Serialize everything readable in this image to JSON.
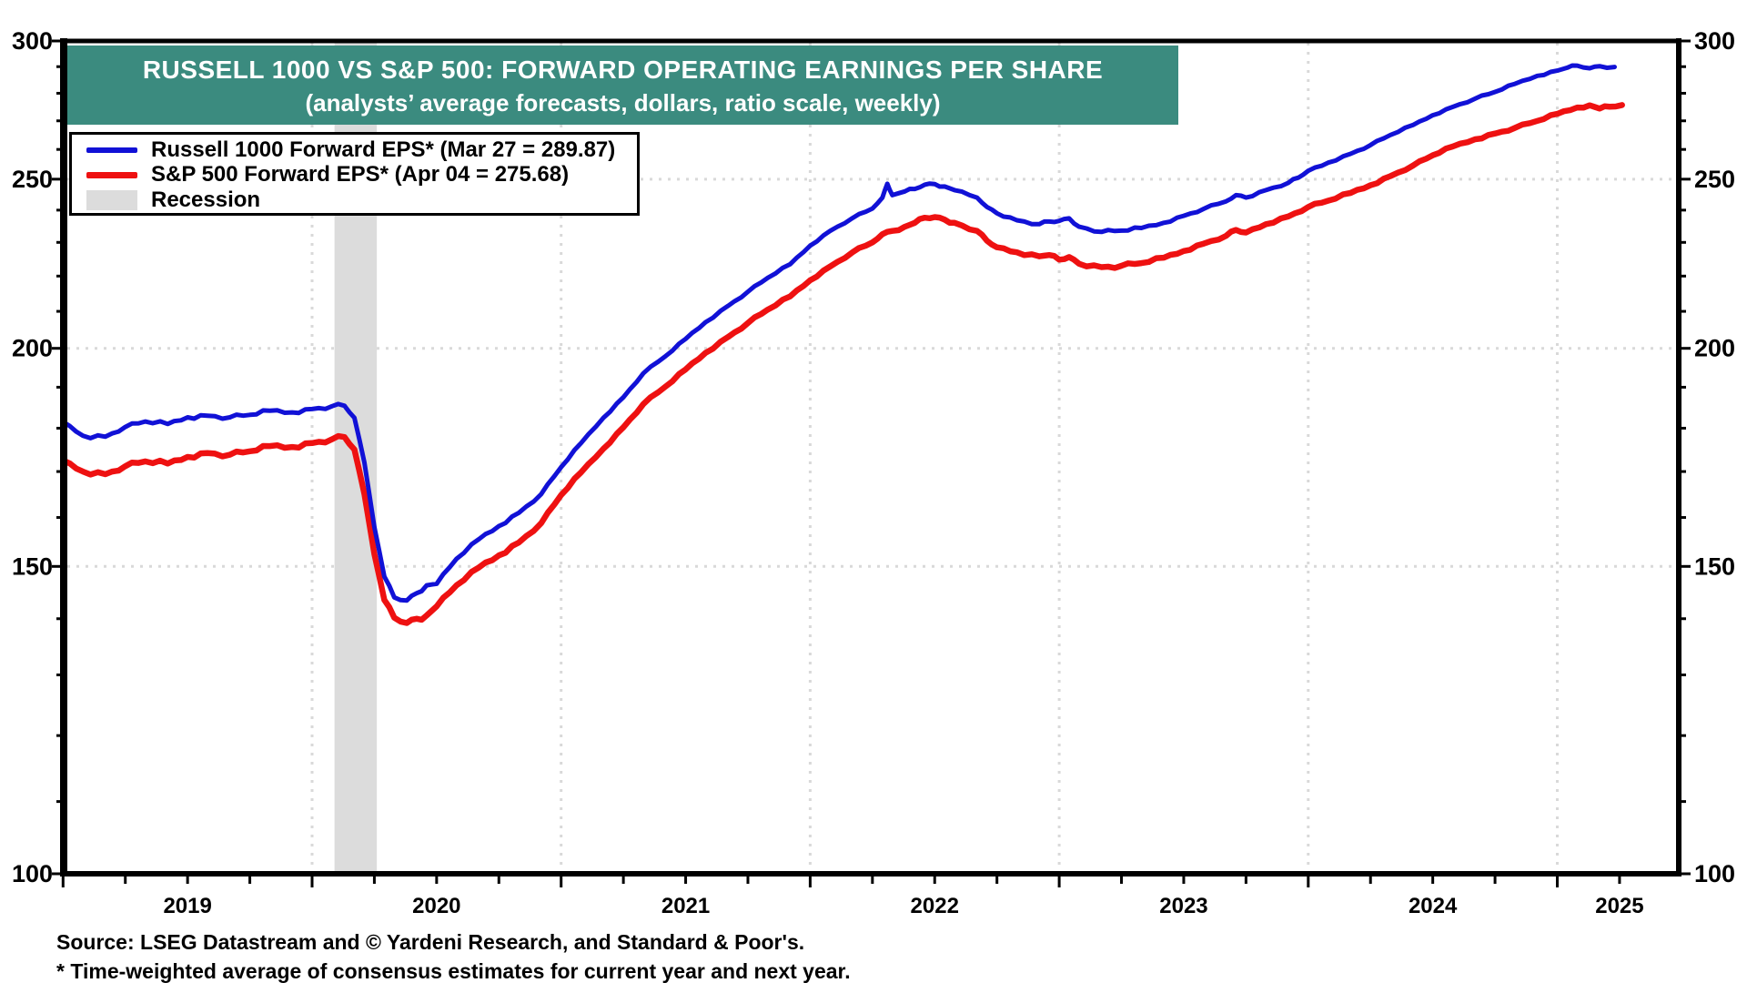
{
  "title": {
    "line1": "RUSSELL 1000 VS S&P 500: FORWARD OPERATING EARNINGS PER SHARE",
    "line2": "(analysts’ average forecasts, dollars, ratio scale, weekly)"
  },
  "legend": {
    "items": [
      {
        "label": "Russell 1000 Forward EPS* (Mar 27 = 289.87)",
        "color": "#1111d6",
        "kind": "line"
      },
      {
        "label": "S&P 500 Forward EPS* (Apr 04 = 275.68)",
        "color": "#ee1111",
        "kind": "line"
      },
      {
        "label": "Recession",
        "color": "#dcdcdc",
        "kind": "band"
      }
    ]
  },
  "footer": {
    "source": "Source: LSEG Datastream and © Yardeni Research, and Standard & Poor's.",
    "note": "* Time-weighted average of consensus estimates for current year and next year."
  },
  "colors": {
    "title_bar": "#3b8b7f",
    "russell": "#1111d6",
    "sp500": "#ee1111",
    "recession": "#dcdcdc",
    "gridline": "#d9d9d9",
    "frame": "#000000"
  },
  "chart_data": {
    "type": "line",
    "y_scale": "log",
    "ylim": [
      100,
      300
    ],
    "y_ticks": [
      100,
      150,
      200,
      250,
      300
    ],
    "y_minor_step": 10,
    "gridline_values": [
      150,
      200,
      250
    ],
    "x_gridline_years": [
      2020,
      2021,
      2022,
      2023,
      2024,
      2025
    ],
    "x_range": [
      2019.0,
      2025.49
    ],
    "year_labels": [
      {
        "label": "2019",
        "t": 2019.5
      },
      {
        "label": "2020",
        "t": 2020.5
      },
      {
        "label": "2021",
        "t": 2021.5
      },
      {
        "label": "2022",
        "t": 2022.5
      },
      {
        "label": "2023",
        "t": 2023.5
      },
      {
        "label": "2024",
        "t": 2024.5
      },
      {
        "label": "2025",
        "t": 2025.25
      }
    ],
    "recession_bands": [
      {
        "start": 2020.09,
        "end": 2020.26
      }
    ],
    "series": [
      {
        "name": "S&P 500 Forward EPS",
        "color": "#ee1111",
        "width": 6.5,
        "jitter": 1.0,
        "points": [
          [
            2019.0,
            172.5
          ],
          [
            2019.08,
            170.0
          ],
          [
            2019.17,
            169.4
          ],
          [
            2019.25,
            171.2
          ],
          [
            2019.33,
            172.3
          ],
          [
            2019.42,
            171.8
          ],
          [
            2019.5,
            173.3
          ],
          [
            2019.58,
            174.2
          ],
          [
            2019.67,
            173.8
          ],
          [
            2019.75,
            174.6
          ],
          [
            2019.83,
            175.8
          ],
          [
            2019.92,
            175.6
          ],
          [
            2020.0,
            176.5
          ],
          [
            2020.08,
            177.4
          ],
          [
            2020.13,
            177.9
          ],
          [
            2020.17,
            175.0
          ],
          [
            2020.21,
            165.0
          ],
          [
            2020.25,
            152.5
          ],
          [
            2020.29,
            143.5
          ],
          [
            2020.33,
            140.2
          ],
          [
            2020.38,
            139.2
          ],
          [
            2020.42,
            140.0
          ],
          [
            2020.46,
            140.6
          ],
          [
            2020.5,
            142.3
          ],
          [
            2020.58,
            146.3
          ],
          [
            2020.67,
            149.8
          ],
          [
            2020.75,
            152.2
          ],
          [
            2020.83,
            154.8
          ],
          [
            2020.92,
            158.8
          ],
          [
            2021.0,
            164.8
          ],
          [
            2021.08,
            169.8
          ],
          [
            2021.17,
            175.2
          ],
          [
            2021.25,
            180.2
          ],
          [
            2021.33,
            185.8
          ],
          [
            2021.42,
            190.2
          ],
          [
            2021.5,
            194.5
          ],
          [
            2021.58,
            198.8
          ],
          [
            2021.67,
            203.0
          ],
          [
            2021.75,
            206.8
          ],
          [
            2021.83,
            210.5
          ],
          [
            2021.92,
            214.2
          ],
          [
            2022.0,
            218.8
          ],
          [
            2022.08,
            222.8
          ],
          [
            2022.17,
            227.0
          ],
          [
            2022.25,
            230.0
          ],
          [
            2022.29,
            232.5
          ],
          [
            2022.33,
            233.5
          ],
          [
            2022.38,
            234.8
          ],
          [
            2022.42,
            236.0
          ],
          [
            2022.46,
            237.6
          ],
          [
            2022.5,
            237.8
          ],
          [
            2022.54,
            237.0
          ],
          [
            2022.58,
            236.0
          ],
          [
            2022.67,
            233.5
          ],
          [
            2022.71,
            230.5
          ],
          [
            2022.75,
            228.5
          ],
          [
            2022.83,
            227.0
          ],
          [
            2022.92,
            225.8
          ],
          [
            2022.96,
            226.2
          ],
          [
            2023.0,
            224.8
          ],
          [
            2023.04,
            225.6
          ],
          [
            2023.08,
            223.6
          ],
          [
            2023.17,
            222.6
          ],
          [
            2023.25,
            223.0
          ],
          [
            2023.33,
            223.8
          ],
          [
            2023.42,
            225.4
          ],
          [
            2023.5,
            227.4
          ],
          [
            2023.58,
            229.6
          ],
          [
            2023.67,
            232.0
          ],
          [
            2023.71,
            233.8
          ],
          [
            2023.75,
            233.0
          ],
          [
            2023.83,
            235.6
          ],
          [
            2023.92,
            238.0
          ],
          [
            2024.0,
            241.0
          ],
          [
            2024.08,
            243.0
          ],
          [
            2024.17,
            245.5
          ],
          [
            2024.25,
            248.0
          ],
          [
            2024.33,
            251.0
          ],
          [
            2024.42,
            254.5
          ],
          [
            2024.5,
            258.0
          ],
          [
            2024.58,
            261.0
          ],
          [
            2024.67,
            263.5
          ],
          [
            2024.75,
            265.5
          ],
          [
            2024.83,
            267.5
          ],
          [
            2024.92,
            270.0
          ],
          [
            2025.0,
            272.5
          ],
          [
            2025.08,
            274.8
          ],
          [
            2025.13,
            275.6
          ],
          [
            2025.17,
            274.4
          ],
          [
            2025.21,
            275.1
          ],
          [
            2025.26,
            275.68
          ]
        ]
      },
      {
        "name": "Russell 1000 Forward EPS",
        "color": "#1111d6",
        "width": 5,
        "jitter": 0.9,
        "points": [
          [
            2019.0,
            181.5
          ],
          [
            2019.08,
            178.2
          ],
          [
            2019.17,
            178.0
          ],
          [
            2019.25,
            180.3
          ],
          [
            2019.33,
            181.6
          ],
          [
            2019.42,
            181.0
          ],
          [
            2019.5,
            182.6
          ],
          [
            2019.58,
            183.0
          ],
          [
            2019.67,
            182.6
          ],
          [
            2019.75,
            183.2
          ],
          [
            2019.83,
            184.2
          ],
          [
            2019.92,
            183.8
          ],
          [
            2020.0,
            184.6
          ],
          [
            2020.08,
            185.3
          ],
          [
            2020.13,
            185.4
          ],
          [
            2020.17,
            182.5
          ],
          [
            2020.21,
            172.0
          ],
          [
            2020.25,
            158.0
          ],
          [
            2020.29,
            148.0
          ],
          [
            2020.33,
            144.0
          ],
          [
            2020.38,
            143.4
          ],
          [
            2020.42,
            144.8
          ],
          [
            2020.46,
            146.3
          ],
          [
            2020.5,
            146.6
          ],
          [
            2020.58,
            151.5
          ],
          [
            2020.67,
            155.5
          ],
          [
            2020.75,
            158.2
          ],
          [
            2020.83,
            161.0
          ],
          [
            2020.92,
            165.0
          ],
          [
            2021.0,
            171.0
          ],
          [
            2021.08,
            176.5
          ],
          [
            2021.17,
            182.5
          ],
          [
            2021.25,
            187.5
          ],
          [
            2021.33,
            193.5
          ],
          [
            2021.42,
            198.0
          ],
          [
            2021.5,
            202.5
          ],
          [
            2021.58,
            207.0
          ],
          [
            2021.67,
            211.5
          ],
          [
            2021.75,
            215.5
          ],
          [
            2021.83,
            219.5
          ],
          [
            2021.92,
            223.5
          ],
          [
            2022.0,
            229.0
          ],
          [
            2022.08,
            233.5
          ],
          [
            2022.17,
            237.5
          ],
          [
            2022.25,
            240.5
          ],
          [
            2022.29,
            244.0
          ],
          [
            2022.31,
            248.5
          ],
          [
            2022.33,
            244.8
          ],
          [
            2022.38,
            246.0
          ],
          [
            2022.42,
            246.8
          ],
          [
            2022.46,
            248.2
          ],
          [
            2022.5,
            248.4
          ],
          [
            2022.54,
            247.6
          ],
          [
            2022.58,
            246.4
          ],
          [
            2022.67,
            244.0
          ],
          [
            2022.71,
            241.0
          ],
          [
            2022.75,
            239.0
          ],
          [
            2022.83,
            236.8
          ],
          [
            2022.92,
            235.6
          ],
          [
            2022.96,
            236.4
          ],
          [
            2023.0,
            236.6
          ],
          [
            2023.04,
            237.4
          ],
          [
            2023.08,
            234.8
          ],
          [
            2023.17,
            233.2
          ],
          [
            2023.25,
            233.6
          ],
          [
            2023.33,
            234.4
          ],
          [
            2023.42,
            236.0
          ],
          [
            2023.5,
            238.2
          ],
          [
            2023.58,
            240.4
          ],
          [
            2023.67,
            242.8
          ],
          [
            2023.71,
            244.8
          ],
          [
            2023.75,
            244.0
          ],
          [
            2023.83,
            246.4
          ],
          [
            2023.92,
            248.8
          ],
          [
            2023.96,
            250.5
          ],
          [
            2024.0,
            252.8
          ],
          [
            2024.08,
            255.5
          ],
          [
            2024.17,
            258.5
          ],
          [
            2024.25,
            261.5
          ],
          [
            2024.33,
            265.0
          ],
          [
            2024.42,
            268.5
          ],
          [
            2024.5,
            272.0
          ],
          [
            2024.58,
            275.0
          ],
          [
            2024.67,
            278.0
          ],
          [
            2024.75,
            280.5
          ],
          [
            2024.83,
            283.5
          ],
          [
            2024.92,
            286.5
          ],
          [
            2025.0,
            288.5
          ],
          [
            2025.04,
            289.6
          ],
          [
            2025.08,
            290.4
          ],
          [
            2025.13,
            289.4
          ],
          [
            2025.17,
            290.2
          ],
          [
            2025.23,
            289.87
          ]
        ]
      }
    ]
  }
}
